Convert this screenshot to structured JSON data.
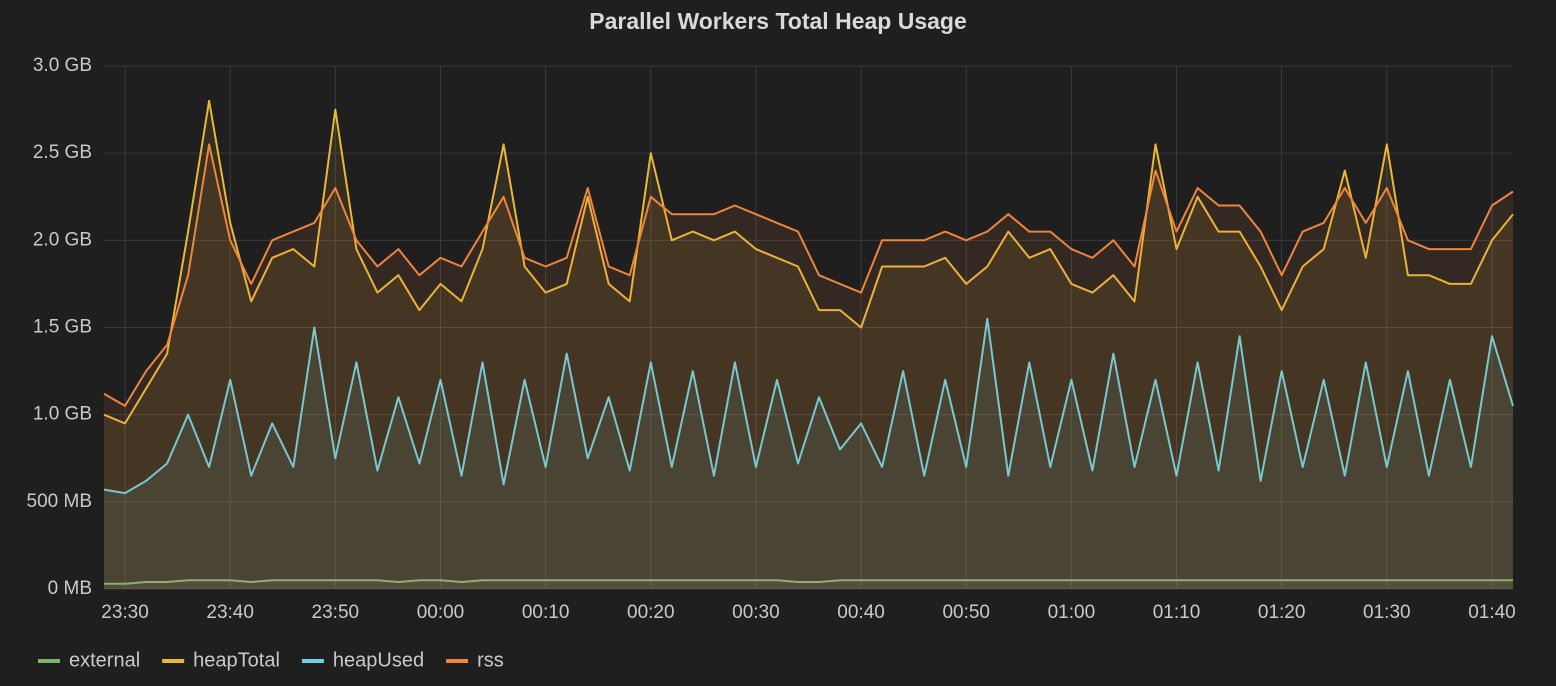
{
  "chart_data": {
    "type": "line",
    "title": "Parallel Workers Total Heap Usage",
    "x": [
      "23:28",
      "23:30",
      "23:32",
      "23:34",
      "23:36",
      "23:38",
      "23:40",
      "23:42",
      "23:44",
      "23:46",
      "23:48",
      "23:50",
      "23:52",
      "23:54",
      "23:56",
      "23:58",
      "00:00",
      "00:02",
      "00:04",
      "00:06",
      "00:08",
      "00:10",
      "00:12",
      "00:14",
      "00:16",
      "00:18",
      "00:20",
      "00:22",
      "00:24",
      "00:26",
      "00:28",
      "00:30",
      "00:32",
      "00:34",
      "00:36",
      "00:38",
      "00:40",
      "00:42",
      "00:44",
      "00:46",
      "00:48",
      "00:50",
      "00:52",
      "00:54",
      "00:56",
      "00:58",
      "01:00",
      "01:02",
      "01:04",
      "01:06",
      "01:08",
      "01:10",
      "01:12",
      "01:14",
      "01:16",
      "01:18",
      "01:20",
      "01:22",
      "01:24",
      "01:26",
      "01:28",
      "01:30",
      "01:32",
      "01:34",
      "01:36",
      "01:38",
      "01:40",
      "01:42"
    ],
    "series": [
      {
        "name": "external",
        "color": "#7eb26d",
        "values": [
          0.03,
          0.03,
          0.04,
          0.04,
          0.05,
          0.05,
          0.05,
          0.04,
          0.05,
          0.05,
          0.05,
          0.05,
          0.05,
          0.05,
          0.04,
          0.05,
          0.05,
          0.04,
          0.05,
          0.05,
          0.05,
          0.05,
          0.05,
          0.05,
          0.05,
          0.05,
          0.05,
          0.05,
          0.05,
          0.05,
          0.05,
          0.05,
          0.05,
          0.04,
          0.04,
          0.05,
          0.05,
          0.05,
          0.05,
          0.05,
          0.05,
          0.05,
          0.05,
          0.05,
          0.05,
          0.05,
          0.05,
          0.05,
          0.05,
          0.05,
          0.05,
          0.05,
          0.05,
          0.05,
          0.05,
          0.05,
          0.05,
          0.05,
          0.05,
          0.05,
          0.05,
          0.05,
          0.05,
          0.05,
          0.05,
          0.05,
          0.05,
          0.05
        ]
      },
      {
        "name": "heapTotal",
        "color": "#eab839",
        "values": [
          1.0,
          0.95,
          1.15,
          1.35,
          2.05,
          2.8,
          2.1,
          1.65,
          1.9,
          1.95,
          1.85,
          2.75,
          1.95,
          1.7,
          1.8,
          1.6,
          1.75,
          1.65,
          1.95,
          2.55,
          1.85,
          1.7,
          1.75,
          2.25,
          1.75,
          1.65,
          2.5,
          2.0,
          2.05,
          2.0,
          2.05,
          1.95,
          1.9,
          1.85,
          1.6,
          1.6,
          1.5,
          1.85,
          1.85,
          1.85,
          1.9,
          1.75,
          1.85,
          2.05,
          1.9,
          1.95,
          1.75,
          1.7,
          1.8,
          1.65,
          2.55,
          1.95,
          2.25,
          2.05,
          2.05,
          1.85,
          1.6,
          1.85,
          1.95,
          2.4,
          1.9,
          2.55,
          1.8,
          1.8,
          1.75,
          1.75,
          2.0,
          2.15
        ]
      },
      {
        "name": "heapUsed",
        "color": "#6ed0e0",
        "values": [
          0.57,
          0.55,
          0.62,
          0.72,
          1.0,
          0.7,
          1.2,
          0.65,
          0.95,
          0.7,
          1.5,
          0.75,
          1.3,
          0.68,
          1.1,
          0.72,
          1.2,
          0.65,
          1.3,
          0.6,
          1.2,
          0.7,
          1.35,
          0.75,
          1.1,
          0.68,
          1.3,
          0.7,
          1.25,
          0.65,
          1.3,
          0.7,
          1.2,
          0.72,
          1.1,
          0.8,
          0.95,
          0.7,
          1.25,
          0.65,
          1.2,
          0.7,
          1.55,
          0.65,
          1.3,
          0.7,
          1.2,
          0.68,
          1.35,
          0.7,
          1.2,
          0.65,
          1.3,
          0.68,
          1.45,
          0.62,
          1.25,
          0.7,
          1.2,
          0.65,
          1.3,
          0.7,
          1.25,
          0.65,
          1.2,
          0.7,
          1.45,
          1.05
        ]
      },
      {
        "name": "rss",
        "color": "#ef843c",
        "values": [
          1.12,
          1.05,
          1.25,
          1.4,
          1.8,
          2.55,
          2.0,
          1.75,
          2.0,
          2.05,
          2.1,
          2.3,
          2.0,
          1.85,
          1.95,
          1.8,
          1.9,
          1.85,
          2.05,
          2.25,
          1.9,
          1.85,
          1.9,
          2.3,
          1.85,
          1.8,
          2.25,
          2.15,
          2.15,
          2.15,
          2.2,
          2.15,
          2.1,
          2.05,
          1.8,
          1.75,
          1.7,
          2.0,
          2.0,
          2.0,
          2.05,
          2.0,
          2.05,
          2.15,
          2.05,
          2.05,
          1.95,
          1.9,
          2.0,
          1.85,
          2.4,
          2.05,
          2.3,
          2.2,
          2.2,
          2.05,
          1.8,
          2.05,
          2.1,
          2.3,
          2.1,
          2.3,
          2.0,
          1.95,
          1.95,
          1.95,
          2.2,
          2.28
        ]
      }
    ],
    "xlim": [
      "23:28",
      "01:42"
    ],
    "xticks": [
      "23:30",
      "23:40",
      "23:50",
      "00:00",
      "00:10",
      "00:20",
      "00:30",
      "00:40",
      "00:50",
      "01:00",
      "01:10",
      "01:20",
      "01:30",
      "01:40"
    ],
    "ylim": [
      0,
      3
    ],
    "yticks": [
      {
        "value": 0,
        "label": "0 MB"
      },
      {
        "value": 0.5,
        "label": "500 MB"
      },
      {
        "value": 1,
        "label": "1.0 GB"
      },
      {
        "value": 1.5,
        "label": "1.5 GB"
      },
      {
        "value": 2,
        "label": "2.0 GB"
      },
      {
        "value": 2.5,
        "label": "2.5 GB"
      },
      {
        "value": 3,
        "label": "3.0 GB"
      }
    ],
    "grid": true,
    "legend": "bottom"
  }
}
